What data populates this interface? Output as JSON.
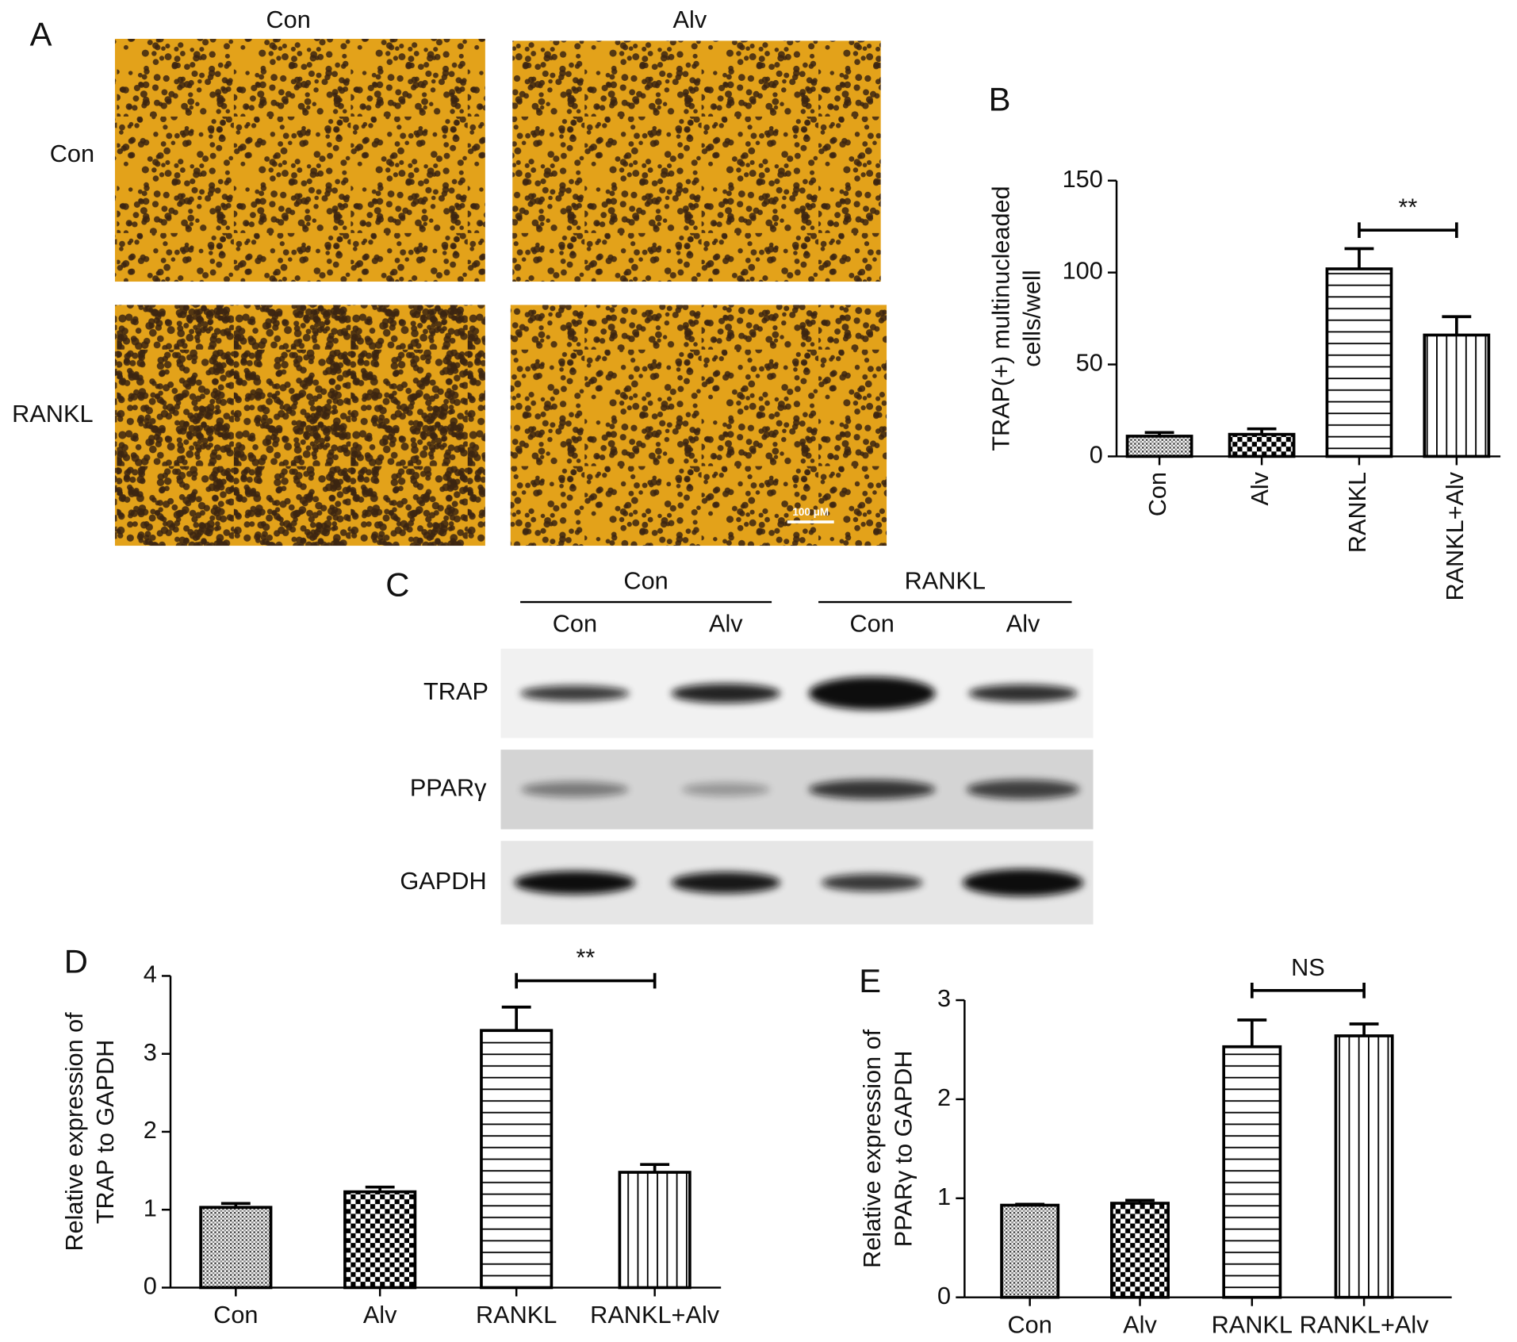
{
  "micrograph": {
    "panel": "A",
    "columns": [
      "Con",
      "Alv"
    ],
    "rows": [
      "Con",
      "RANKL"
    ],
    "scale_bar": "100 μM"
  },
  "western_blot": {
    "panel": "C",
    "groups": [
      {
        "name": "Con",
        "lanes": [
          "Con",
          "Alv"
        ]
      },
      {
        "name": "RANKL",
        "lanes": [
          "Con",
          "Alv"
        ]
      }
    ],
    "rows": [
      "TRAP",
      "PPARγ",
      "GAPDH"
    ]
  },
  "chart_data": [
    {
      "type": "bar",
      "panel": "B",
      "ylabel": [
        "TRAP(+) multinucleaded",
        "cells/well"
      ],
      "categories": [
        "Con",
        "Alv",
        "RANKL",
        "RANKL+Alv"
      ],
      "values": [
        11,
        12,
        102,
        66
      ],
      "errors": [
        2,
        3,
        11,
        10
      ],
      "ylim": [
        0,
        150
      ],
      "yticks": [
        0,
        50,
        100,
        150
      ],
      "color": "#000000",
      "bar_patterns": [
        "dots",
        "checker",
        "hlines",
        "vlines"
      ],
      "annotations": [
        {
          "text": "**",
          "between": [
            2,
            3
          ]
        }
      ]
    },
    {
      "type": "bar",
      "panel": "D",
      "ylabel": [
        "Relative expression of",
        "TRAP to GAPDH"
      ],
      "categories": [
        "Con",
        "Alv",
        "RANKL",
        "RANKL+Alv"
      ],
      "values": [
        1.03,
        1.23,
        3.3,
        1.48
      ],
      "errors": [
        0.05,
        0.06,
        0.3,
        0.1
      ],
      "ylim": [
        0,
        4
      ],
      "yticks": [
        0,
        1,
        2,
        3,
        4
      ],
      "color": "#000000",
      "bar_patterns": [
        "dots",
        "checker",
        "hlines",
        "vlines"
      ],
      "annotations": [
        {
          "text": "**",
          "between": [
            2,
            3
          ]
        }
      ]
    },
    {
      "type": "bar",
      "panel": "E",
      "ylabel": [
        "Relative expression of",
        "PPARγ to GAPDH"
      ],
      "categories": [
        "Con",
        "Alv",
        "RANKL",
        "RANKL+Alv"
      ],
      "values": [
        0.93,
        0.95,
        2.53,
        2.64
      ],
      "errors": [
        0.01,
        0.03,
        0.27,
        0.12
      ],
      "ylim": [
        0,
        3
      ],
      "yticks": [
        0,
        1,
        2,
        3
      ],
      "color": "#000000",
      "bar_patterns": [
        "dots",
        "checker",
        "hlines",
        "vlines"
      ],
      "annotations": [
        {
          "text": "NS",
          "between": [
            2,
            3
          ]
        }
      ]
    }
  ]
}
